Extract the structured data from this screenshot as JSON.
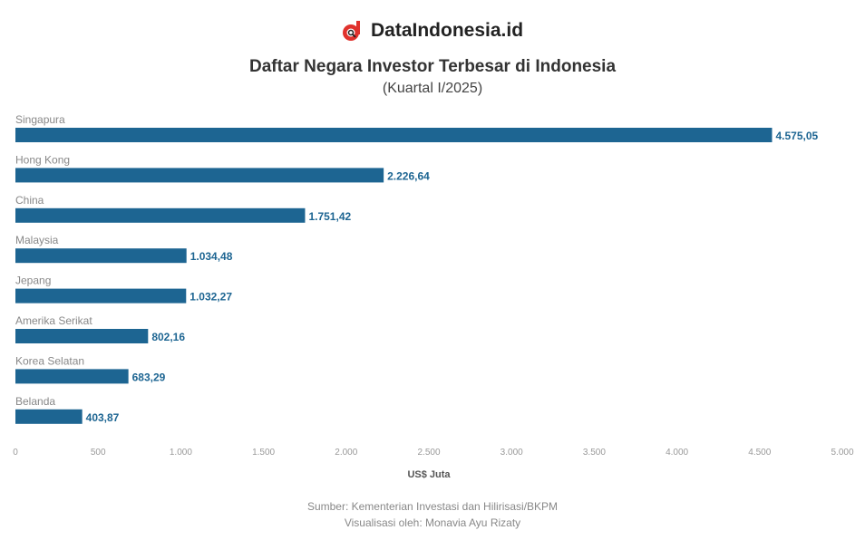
{
  "brand": {
    "name": "DataIndonesia.id",
    "logo_color": "#e0322d"
  },
  "chart_data": {
    "type": "bar",
    "orientation": "horizontal",
    "title": "Daftar Negara Investor Terbesar di Indonesia",
    "subtitle": "(Kuartal I/2025)",
    "categories": [
      "Singapura",
      "Hong Kong",
      "China",
      "Malaysia",
      "Jepang",
      "Amerika Serikat",
      "Korea Selatan",
      "Belanda"
    ],
    "values": [
      4575.05,
      2226.64,
      1751.42,
      1034.48,
      1032.27,
      802.16,
      683.29,
      403.87
    ],
    "value_labels": [
      "4.575,05",
      "2.226,64",
      "1.751,42",
      "1.034,48",
      "1.032,27",
      "802,16",
      "683,29",
      "403,87"
    ],
    "xlabel": "US$ Juta",
    "xlim": [
      0,
      5000
    ],
    "xticks": [
      0,
      500,
      1000,
      1500,
      2000,
      2500,
      3000,
      3500,
      4000,
      4500,
      5000
    ],
    "xtick_labels": [
      "0",
      "500",
      "1.000",
      "1.500",
      "2.000",
      "2.500",
      "3.000",
      "3.500",
      "4.000",
      "4.500",
      "5.000"
    ],
    "grid": false,
    "bar_color": "#1d6592"
  },
  "footer": {
    "source": "Sumber: Kementerian Investasi dan Hilirisasi/BKPM",
    "credit": "Visualisasi oleh: Monavia Ayu Rizaty"
  }
}
